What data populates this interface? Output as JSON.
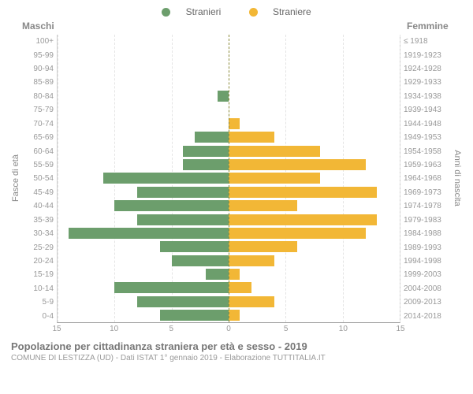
{
  "legend": {
    "male_label": "Stranieri",
    "female_label": "Straniere",
    "male_color": "#6c9e6c",
    "female_color": "#f2b736"
  },
  "headers": {
    "male": "Maschi",
    "female": "Femmine"
  },
  "y_axis_left_title": "Fasce di età",
  "y_axis_right_title": "Anni di nascita",
  "x_axis": {
    "max": 15,
    "ticks": [
      15,
      10,
      5,
      0,
      5,
      10,
      15
    ]
  },
  "gridlines": [
    5,
    10,
    15
  ],
  "rows": [
    {
      "age": "100+",
      "birth": "≤ 1918",
      "m": 0,
      "f": 0
    },
    {
      "age": "95-99",
      "birth": "1919-1923",
      "m": 0,
      "f": 0
    },
    {
      "age": "90-94",
      "birth": "1924-1928",
      "m": 0,
      "f": 0
    },
    {
      "age": "85-89",
      "birth": "1929-1933",
      "m": 0,
      "f": 0
    },
    {
      "age": "80-84",
      "birth": "1934-1938",
      "m": 1,
      "f": 0
    },
    {
      "age": "75-79",
      "birth": "1939-1943",
      "m": 0,
      "f": 0
    },
    {
      "age": "70-74",
      "birth": "1944-1948",
      "m": 0,
      "f": 1
    },
    {
      "age": "65-69",
      "birth": "1949-1953",
      "m": 3,
      "f": 4
    },
    {
      "age": "60-64",
      "birth": "1954-1958",
      "m": 4,
      "f": 8
    },
    {
      "age": "55-59",
      "birth": "1959-1963",
      "m": 4,
      "f": 12
    },
    {
      "age": "50-54",
      "birth": "1964-1968",
      "m": 11,
      "f": 8
    },
    {
      "age": "45-49",
      "birth": "1969-1973",
      "m": 8,
      "f": 13
    },
    {
      "age": "40-44",
      "birth": "1974-1978",
      "m": 10,
      "f": 6
    },
    {
      "age": "35-39",
      "birth": "1979-1983",
      "m": 8,
      "f": 13
    },
    {
      "age": "30-34",
      "birth": "1984-1988",
      "m": 14,
      "f": 12
    },
    {
      "age": "25-29",
      "birth": "1989-1993",
      "m": 6,
      "f": 6
    },
    {
      "age": "20-24",
      "birth": "1994-1998",
      "m": 5,
      "f": 4
    },
    {
      "age": "15-19",
      "birth": "1999-2003",
      "m": 2,
      "f": 1
    },
    {
      "age": "10-14",
      "birth": "2004-2008",
      "m": 10,
      "f": 2
    },
    {
      "age": "5-9",
      "birth": "2009-2013",
      "m": 8,
      "f": 4
    },
    {
      "age": "0-4",
      "birth": "2014-2018",
      "m": 6,
      "f": 1
    }
  ],
  "title": "Popolazione per cittadinanza straniera per età e sesso - 2019",
  "subtitle": "COMUNE DI LESTIZZA (UD) - Dati ISTAT 1° gennaio 2019 - Elaborazione TUTTITALIA.IT",
  "colors": {
    "grid": "#e4e4e4",
    "centerline": "#8a8a3a",
    "text_muted": "#999",
    "text_title": "#777"
  }
}
